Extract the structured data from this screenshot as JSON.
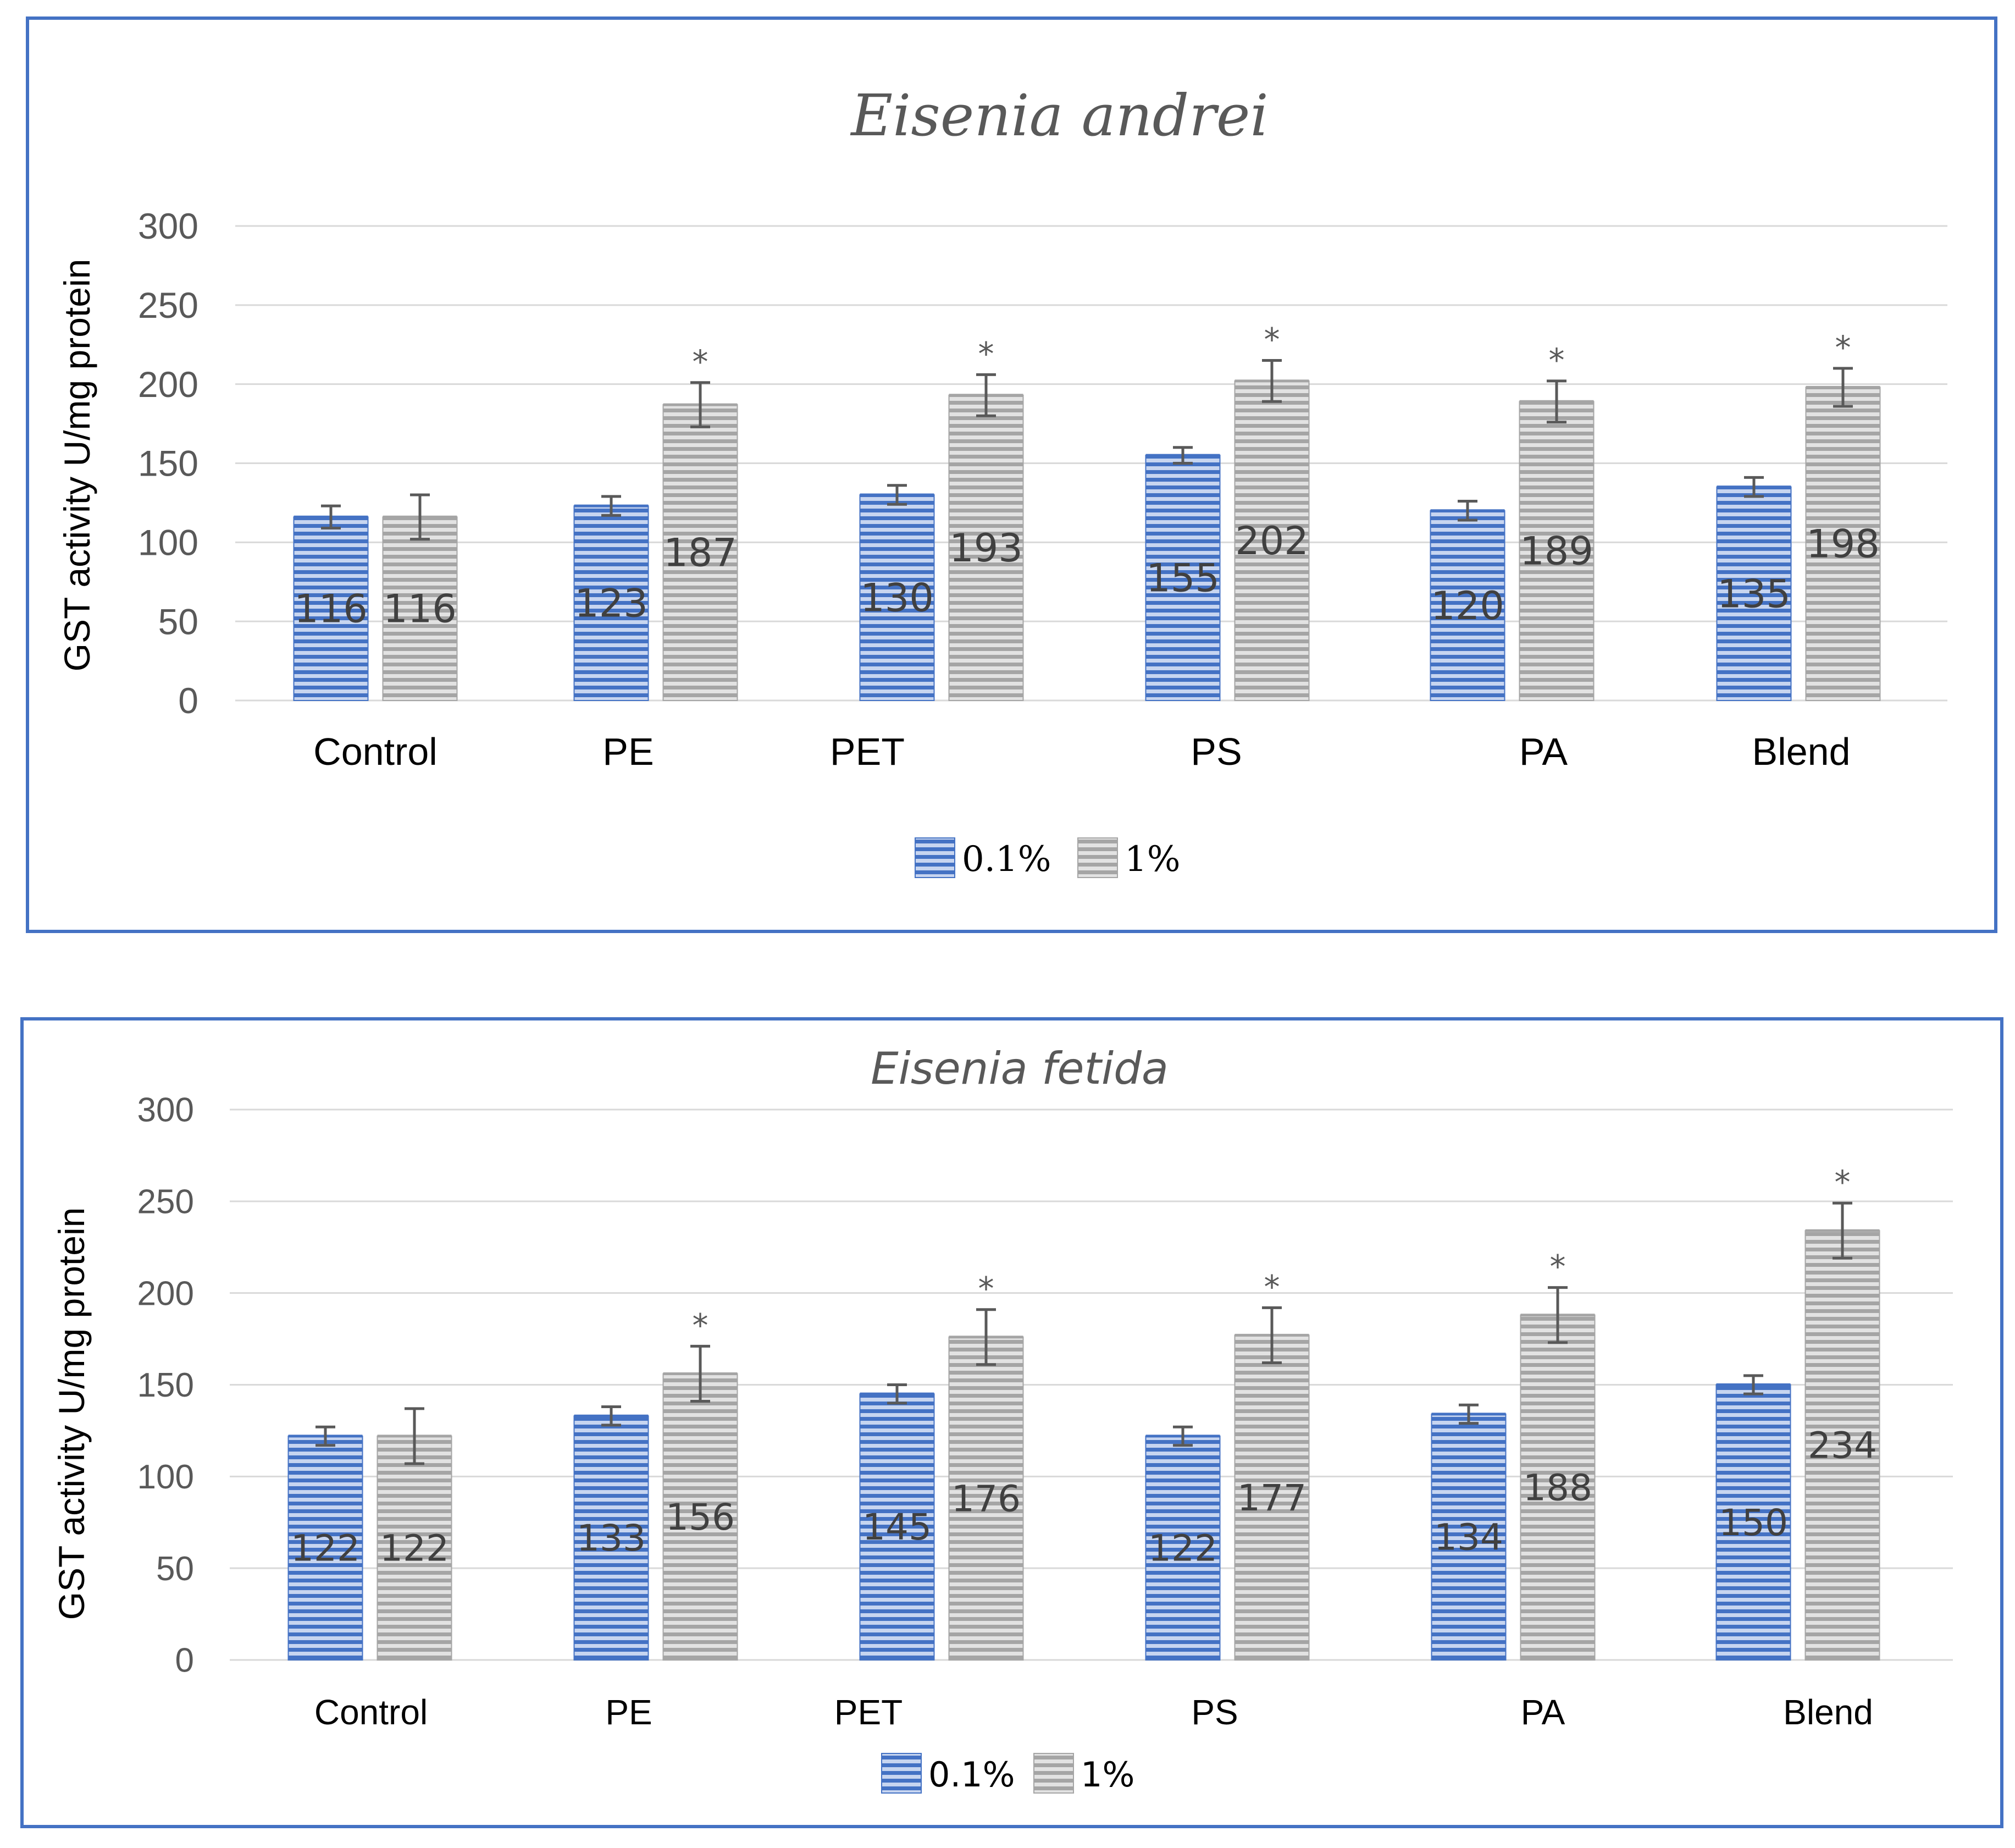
{
  "colors": {
    "series_0_1": "#4472c4",
    "series_1": "#a5a5a5",
    "grid": "#d9d9d9",
    "error_bar": "#595959",
    "frame": "#4472c4"
  },
  "chart_data": [
    {
      "type": "bar",
      "title": "Eisenia andrei",
      "xlabel": "",
      "ylabel": "GST activity U/mg protein",
      "ylim": [
        0,
        300
      ],
      "yticks": [
        "0",
        "50",
        "100",
        "150",
        "200",
        "250",
        "300"
      ],
      "categories": [
        "Control",
        "PE",
        "PET",
        "PS",
        "PA",
        "Blend"
      ],
      "legend_position": "bottom",
      "series": [
        {
          "name": "0.1%",
          "values": [
            116,
            123,
            130,
            155,
            120,
            135
          ],
          "errors": [
            7,
            6,
            6,
            5,
            6,
            6
          ],
          "significant": [
            false,
            false,
            false,
            false,
            false,
            false
          ]
        },
        {
          "name": "1%",
          "values": [
            116,
            187,
            193,
            202,
            189,
            198
          ],
          "errors": [
            14,
            14,
            13,
            13,
            13,
            12
          ],
          "significant": [
            false,
            true,
            true,
            true,
            true,
            true
          ]
        }
      ],
      "significance_marker": "*"
    },
    {
      "type": "bar",
      "title": "Eisenia fetida",
      "xlabel": "",
      "ylabel": "GST activity U/mg protein",
      "ylim": [
        0,
        300
      ],
      "yticks": [
        "0",
        "50",
        "100",
        "150",
        "200",
        "250",
        "300"
      ],
      "categories": [
        "Control",
        "PE",
        "PET",
        "PS",
        "PA",
        "Blend"
      ],
      "legend_position": "bottom",
      "series": [
        {
          "name": "0.1%",
          "values": [
            122,
            133,
            145,
            122,
            134,
            150
          ],
          "errors": [
            5,
            5,
            5,
            5,
            5,
            5
          ],
          "significant": [
            false,
            false,
            false,
            false,
            false,
            false
          ]
        },
        {
          "name": "1%",
          "values": [
            122,
            156,
            176,
            177,
            188,
            234
          ],
          "errors": [
            15,
            15,
            15,
            15,
            15,
            15
          ],
          "significant": [
            false,
            true,
            true,
            true,
            true,
            true
          ]
        }
      ],
      "significance_marker": "*"
    }
  ]
}
